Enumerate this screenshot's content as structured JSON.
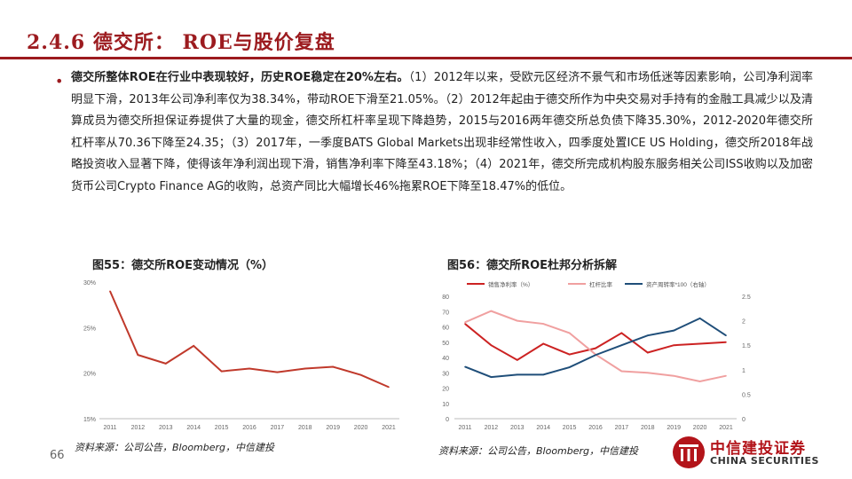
{
  "header": {
    "title": "2.4.6 德交所： ROE与股价复盘"
  },
  "body": {
    "bullet": "•",
    "lead_bold": "德交所整体ROE在行业中表现较好，历史ROE稳定在20%左右。",
    "text": "（1）2012年以来，受欧元区经济不景气和市场低迷等因素影响，公司净利润率明显下滑，2013年公司净利率仅为38.34%，带动ROE下滑至21.05%。（2）2012年起由于德交所作为中央交易对手持有的金融工具减少以及清算成员为德交所担保证券提供了大量的现金，德交所杠杆率呈现下降趋势，2015与2016两年德交所总负债下降35.30%，2012-2020年德交所杠杆率从70.36下降至24.35；（3）2017年，一季度BATS Global Markets出现非经常性收入，四季度处置ICE US Holding，德交所2018年战略投资收入显著下降，使得该年净利润出现下滑，销售净利率下降至43.18%；（4）2021年，德交所完成机构股东服务相关公司ISS收购以及加密货币公司Crypto Finance AG的收购，总资产同比大幅增长46%拖累ROE下降至18.47%的低位。"
  },
  "figures": {
    "fig55": {
      "caption": "图55：德交所ROE变动情况（%）",
      "source": "资料来源：公司公告，Bloomberg，中信建投"
    },
    "fig56": {
      "caption": "图56：德交所ROE杜邦分析拆解",
      "source": "资料来源：公司公告，Bloomberg，中信建投"
    }
  },
  "chart_data": [
    {
      "type": "line",
      "title": "图55：德交所ROE变动情况（%）",
      "categories": [
        "2011",
        "2012",
        "2013",
        "2014",
        "2015",
        "2016",
        "2017",
        "2018",
        "2019",
        "2020",
        "2021"
      ],
      "series": [
        {
          "name": "",
          "values": [
            29.0,
            22.0,
            21.05,
            23.0,
            20.2,
            20.5,
            20.1,
            20.5,
            20.7,
            19.8,
            18.47
          ]
        }
      ],
      "yticks": [
        "15%",
        "20%",
        "25%",
        "30%"
      ],
      "ylim": [
        15,
        30
      ],
      "color": "#c0392b",
      "grid": false
    },
    {
      "type": "line",
      "title": "图56：德交所ROE杜邦分析拆解",
      "categories": [
        "2011",
        "2012",
        "2013",
        "2014",
        "2015",
        "2016",
        "2017",
        "2018",
        "2019",
        "2020",
        "2021"
      ],
      "series": [
        {
          "name": "销售净利率（%）",
          "axis": "left",
          "color": "#cc2222",
          "values": [
            62,
            48,
            38.34,
            49,
            42,
            46,
            56,
            43.18,
            48,
            49,
            50
          ]
        },
        {
          "name": "杠杆比率",
          "axis": "left",
          "color": "#f0a0a0",
          "values": [
            63,
            70.36,
            64,
            62,
            56,
            42,
            31,
            30,
            28,
            24.35,
            28
          ]
        },
        {
          "name": "资产周转率*100（右轴）",
          "axis": "right",
          "color": "#1f4e79",
          "values": [
            1.06,
            0.85,
            0.9,
            0.9,
            1.05,
            1.3,
            1.5,
            1.7,
            1.8,
            2.05,
            1.7
          ]
        }
      ],
      "yleft_ticks": [
        "0",
        "10",
        "20",
        "30",
        "40",
        "50",
        "60",
        "70",
        "80"
      ],
      "yleft_lim": [
        0,
        80
      ],
      "yright_ticks": [
        "0",
        "0.5",
        "1",
        "1.5",
        "2",
        "2.5"
      ],
      "yright_lim": [
        0,
        2.5
      ],
      "legend_position": "top",
      "grid": false
    }
  ],
  "footer": {
    "page_number": "66",
    "logo_cn": "中信建投证券",
    "logo_en": "CHINA SECURITIES",
    "logo_color": "#b3141a"
  }
}
